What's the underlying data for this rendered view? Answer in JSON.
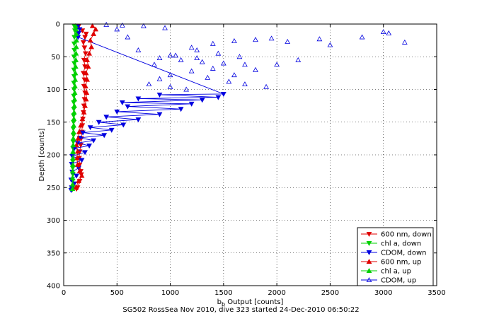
{
  "caption": "SG502 RossSea Nov 2010, dive 323 started 24-Dec-2010 06:50:22",
  "chart_data": {
    "type": "scatter",
    "xlabel_main": "b",
    "xlabel_sub": "b",
    "xlabel_rest": " Output [counts]",
    "ylabel": "Depth [counts]",
    "xlim": [
      0,
      3500
    ],
    "ylim": [
      0,
      400
    ],
    "y_reversed": true,
    "xticks": [
      0,
      500,
      1000,
      1500,
      2000,
      2500,
      3000,
      3500
    ],
    "yticks": [
      0,
      50,
      100,
      150,
      200,
      250,
      300,
      350,
      400
    ],
    "grid": true,
    "legend_position": "bottom-right",
    "series": [
      {
        "name": "600 nm, down",
        "color": "#e00000",
        "marker": "down",
        "line": true,
        "points": [
          [
            140,
            3
          ],
          [
            175,
            10
          ],
          [
            210,
            15
          ],
          [
            200,
            20
          ],
          [
            185,
            28
          ],
          [
            195,
            36
          ],
          [
            205,
            45
          ],
          [
            190,
            55
          ],
          [
            200,
            65
          ],
          [
            185,
            75
          ],
          [
            195,
            85
          ],
          [
            190,
            95
          ],
          [
            200,
            105
          ],
          [
            195,
            115
          ],
          [
            190,
            125
          ],
          [
            185,
            135
          ],
          [
            180,
            145
          ],
          [
            175,
            155
          ],
          [
            170,
            165
          ],
          [
            165,
            175
          ],
          [
            160,
            185
          ],
          [
            150,
            195
          ],
          [
            145,
            205
          ],
          [
            150,
            215
          ],
          [
            160,
            225
          ],
          [
            165,
            230
          ],
          [
            150,
            240
          ],
          [
            130,
            250
          ],
          [
            120,
            252
          ]
        ]
      },
      {
        "name": "chl a, down",
        "color": "#00d000",
        "marker": "down",
        "line": true,
        "points": [
          [
            100,
            3
          ],
          [
            105,
            10
          ],
          [
            100,
            20
          ],
          [
            98,
            30
          ],
          [
            100,
            40
          ],
          [
            97,
            50
          ],
          [
            99,
            60
          ],
          [
            96,
            70
          ],
          [
            98,
            80
          ],
          [
            95,
            90
          ],
          [
            97,
            100
          ],
          [
            95,
            110
          ],
          [
            94,
            120
          ],
          [
            95,
            130
          ],
          [
            93,
            140
          ],
          [
            92,
            150
          ],
          [
            90,
            160
          ],
          [
            92,
            170
          ],
          [
            90,
            180
          ],
          [
            88,
            190
          ],
          [
            87,
            200
          ],
          [
            86,
            210
          ],
          [
            85,
            220
          ],
          [
            86,
            230
          ],
          [
            84,
            240
          ],
          [
            82,
            250
          ],
          [
            80,
            253
          ]
        ]
      },
      {
        "name": "CDOM, down",
        "color": "#0000e0",
        "marker": "down",
        "line": true,
        "points": [
          [
            130,
            4
          ],
          [
            150,
            8
          ],
          [
            140,
            14
          ],
          [
            135,
            20
          ],
          [
            1500,
            107
          ],
          [
            900,
            108
          ],
          [
            1450,
            112
          ],
          [
            700,
            114
          ],
          [
            1300,
            116
          ],
          [
            550,
            120
          ],
          [
            1200,
            122
          ],
          [
            600,
            126
          ],
          [
            1100,
            130
          ],
          [
            500,
            134
          ],
          [
            900,
            138
          ],
          [
            400,
            142
          ],
          [
            700,
            146
          ],
          [
            330,
            150
          ],
          [
            560,
            154
          ],
          [
            250,
            158
          ],
          [
            450,
            162
          ],
          [
            180,
            166
          ],
          [
            380,
            170
          ],
          [
            150,
            174
          ],
          [
            280,
            178
          ],
          [
            130,
            182
          ],
          [
            240,
            186
          ],
          [
            100,
            190
          ],
          [
            200,
            196
          ],
          [
            80,
            202
          ],
          [
            170,
            208
          ],
          [
            75,
            214
          ],
          [
            140,
            220
          ],
          [
            80,
            226
          ],
          [
            120,
            232
          ],
          [
            70,
            238
          ],
          [
            100,
            244
          ],
          [
            75,
            250
          ],
          [
            70,
            254
          ]
        ]
      },
      {
        "name": "600 nm, up",
        "color": "#e00000",
        "marker": "up",
        "line": true,
        "points": [
          [
            115,
            250
          ],
          [
            140,
            240
          ],
          [
            170,
            232
          ],
          [
            150,
            225
          ],
          [
            130,
            215
          ],
          [
            125,
            205
          ],
          [
            130,
            195
          ],
          [
            120,
            185
          ],
          [
            135,
            175
          ],
          [
            145,
            165
          ],
          [
            160,
            155
          ],
          [
            175,
            145
          ],
          [
            190,
            135
          ],
          [
            200,
            125
          ],
          [
            210,
            115
          ],
          [
            215,
            105
          ],
          [
            205,
            95
          ],
          [
            220,
            85
          ],
          [
            210,
            75
          ],
          [
            230,
            65
          ],
          [
            220,
            55
          ],
          [
            240,
            45
          ],
          [
            260,
            35
          ],
          [
            250,
            25
          ],
          [
            280,
            15
          ],
          [
            300,
            8
          ],
          [
            270,
            3
          ]
        ]
      },
      {
        "name": "chl a, up",
        "color": "#00d000",
        "marker": "up",
        "line": true,
        "points": [
          [
            82,
            252
          ],
          [
            84,
            245
          ],
          [
            83,
            235
          ],
          [
            85,
            225
          ],
          [
            86,
            215
          ],
          [
            87,
            205
          ],
          [
            88,
            195
          ],
          [
            89,
            185
          ],
          [
            90,
            175
          ],
          [
            92,
            165
          ],
          [
            94,
            155
          ],
          [
            96,
            145
          ],
          [
            98,
            135
          ],
          [
            100,
            125
          ],
          [
            102,
            115
          ],
          [
            104,
            105
          ],
          [
            106,
            95
          ],
          [
            108,
            85
          ],
          [
            110,
            75
          ],
          [
            112,
            65
          ],
          [
            114,
            55
          ],
          [
            116,
            45
          ],
          [
            118,
            35
          ],
          [
            120,
            25
          ],
          [
            118,
            15
          ],
          [
            115,
            8
          ],
          [
            112,
            3
          ]
        ]
      },
      {
        "name": "CDOM, up",
        "color": "#0000e0",
        "marker": "up",
        "line": false,
        "points": [
          [
            3000,
            12
          ],
          [
            3050,
            14
          ],
          [
            2400,
            23
          ],
          [
            2100,
            27
          ],
          [
            2500,
            32
          ],
          [
            3200,
            28
          ],
          [
            2800,
            20
          ],
          [
            1950,
            22
          ],
          [
            1800,
            24
          ],
          [
            1600,
            26
          ],
          [
            1400,
            30
          ],
          [
            1200,
            36
          ],
          [
            1000,
            48
          ],
          [
            900,
            52
          ],
          [
            1100,
            55
          ],
          [
            1300,
            58
          ],
          [
            1500,
            60
          ],
          [
            1700,
            62
          ],
          [
            1400,
            68
          ],
          [
            1200,
            72
          ],
          [
            1000,
            78
          ],
          [
            1350,
            82
          ],
          [
            1550,
            88
          ],
          [
            1700,
            92
          ],
          [
            1900,
            96
          ],
          [
            1150,
            100
          ],
          [
            1250,
            40
          ],
          [
            1450,
            45
          ],
          [
            1650,
            50
          ],
          [
            2200,
            55
          ],
          [
            2000,
            62
          ],
          [
            1800,
            70
          ],
          [
            1600,
            78
          ],
          [
            900,
            84
          ],
          [
            800,
            92
          ],
          [
            1000,
            96
          ],
          [
            700,
            40
          ],
          [
            600,
            20
          ],
          [
            500,
            8
          ],
          [
            950,
            6
          ],
          [
            750,
            3
          ],
          [
            550,
            2
          ],
          [
            400,
            1
          ],
          [
            1050,
            48
          ],
          [
            850,
            62
          ],
          [
            1250,
            52
          ]
        ]
      }
    ]
  }
}
